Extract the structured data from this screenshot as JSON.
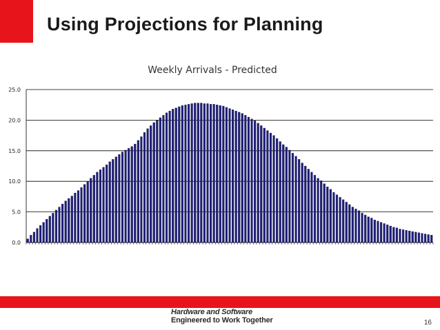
{
  "slide": {
    "title": "Using Projections for Planning",
    "brand_line1": "Hardware and Software",
    "brand_line2": "Engineered to Work Together",
    "page_number": "16",
    "accent_color": "#e8141c"
  },
  "chart_data": {
    "type": "bar",
    "title": "Weekly Arrivals - Predicted",
    "xlabel": "",
    "ylabel": "",
    "ylim": [
      0,
      25
    ],
    "yticks": [
      "0.0",
      "5.0",
      "10.0",
      "15.0",
      "20.0",
      "25.0"
    ],
    "grid": true,
    "legend": "none",
    "bar_color": "#1f1f7a",
    "values": [
      0.6,
      1.2,
      1.7,
      2.3,
      2.8,
      3.3,
      3.8,
      4.3,
      4.8,
      5.3,
      5.8,
      6.3,
      6.8,
      7.2,
      7.6,
      8.1,
      8.5,
      9.0,
      9.5,
      10.0,
      10.5,
      11.0,
      11.5,
      11.9,
      12.3,
      12.7,
      13.2,
      13.6,
      14.0,
      14.4,
      14.8,
      15.1,
      15.4,
      15.7,
      16.1,
      16.7,
      17.3,
      18.0,
      18.6,
      19.1,
      19.6,
      20.0,
      20.4,
      20.8,
      21.2,
      21.5,
      21.8,
      22.0,
      22.2,
      22.4,
      22.5,
      22.6,
      22.7,
      22.8,
      22.8,
      22.8,
      22.7,
      22.7,
      22.6,
      22.6,
      22.5,
      22.4,
      22.3,
      22.1,
      21.9,
      21.7,
      21.5,
      21.3,
      21.1,
      20.8,
      20.5,
      20.2,
      19.9,
      19.5,
      19.1,
      18.7,
      18.3,
      17.9,
      17.5,
      17.0,
      16.5,
      16.0,
      15.6,
      15.1,
      14.6,
      14.1,
      13.6,
      13.0,
      12.5,
      12.0,
      11.5,
      11.0,
      10.5,
      10.1,
      9.6,
      9.1,
      8.7,
      8.2,
      7.8,
      7.4,
      7.0,
      6.6,
      6.2,
      5.8,
      5.5,
      5.2,
      4.8,
      4.5,
      4.2,
      4.0,
      3.7,
      3.5,
      3.3,
      3.1,
      2.9,
      2.7,
      2.5,
      2.4,
      2.2,
      2.1,
      2.0,
      1.9,
      1.8,
      1.7,
      1.6,
      1.5,
      1.4,
      1.3,
      1.2
    ]
  }
}
